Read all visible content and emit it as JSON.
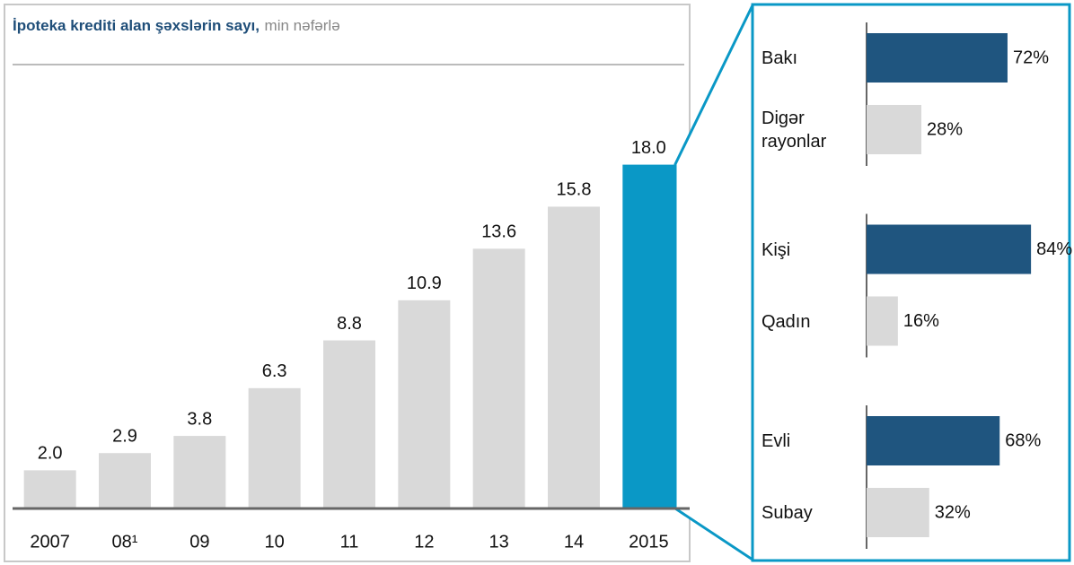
{
  "chart_data": [
    {
      "type": "bar",
      "orientation": "vertical",
      "title": "İpoteka krediti alan şəxslərin sayı,",
      "subtitle": "min nəfərlə",
      "categories": [
        "2007",
        "08¹",
        "09",
        "10",
        "11",
        "12",
        "13",
        "14",
        "2015"
      ],
      "values": [
        2.0,
        2.9,
        3.8,
        6.3,
        8.8,
        10.9,
        13.6,
        15.8,
        18.0
      ],
      "value_labels": [
        "2.0",
        "2.9",
        "3.8",
        "6.3",
        "8.8",
        "10.9",
        "13.6",
        "15.8",
        "18.0"
      ],
      "colors": [
        "#d9d9d9",
        "#d9d9d9",
        "#d9d9d9",
        "#d9d9d9",
        "#d9d9d9",
        "#d9d9d9",
        "#d9d9d9",
        "#d9d9d9",
        "#0a98c6"
      ],
      "ylim": [
        0,
        20
      ]
    },
    {
      "type": "bar",
      "orientation": "horizontal",
      "xlim": [
        0,
        100
      ],
      "groups": [
        {
          "categories": [
            "Bakı",
            "Digər rayonlar"
          ],
          "values": [
            72,
            28
          ],
          "value_labels": [
            "72%",
            "28%"
          ],
          "colors": [
            "#1f557f",
            "#d9d9d9"
          ]
        },
        {
          "categories": [
            "Kişi",
            "Qadın"
          ],
          "values": [
            84,
            16
          ],
          "value_labels": [
            "84%",
            "16%"
          ],
          "colors": [
            "#1f557f",
            "#d9d9d9"
          ]
        },
        {
          "categories": [
            "Evli",
            "Subay"
          ],
          "values": [
            68,
            32
          ],
          "value_labels": [
            "68%",
            "32%"
          ],
          "colors": [
            "#1f557f",
            "#d9d9d9"
          ]
        }
      ]
    }
  ]
}
